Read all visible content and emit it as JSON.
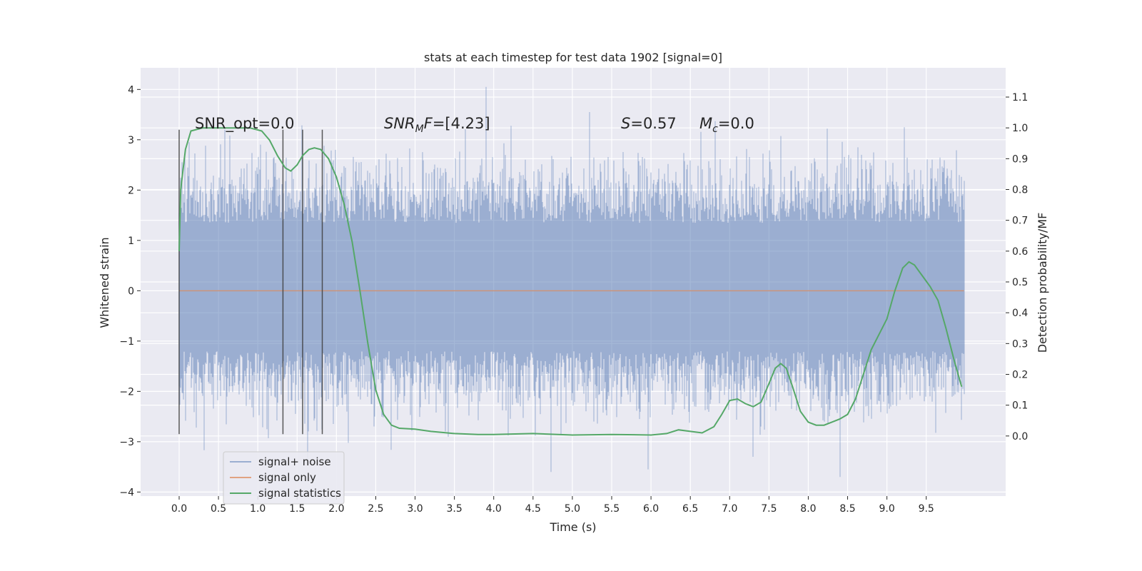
{
  "chart_data": {
    "type": "line",
    "title": "stats at each timestep for test data 1902 [signal=0]",
    "xlabel": "Time (s)",
    "ylabel": "Whitened strain",
    "y2label": "Detection probability/MF",
    "xlim": [
      -0.49,
      10.51
    ],
    "ylim": [
      -4.08,
      4.43
    ],
    "y2lim": [
      -0.195,
      1.195
    ],
    "grid": true,
    "background": "#eaeaf2",
    "xticks": [
      "0.0",
      "0.5",
      "1.0",
      "1.5",
      "2.0",
      "2.5",
      "3.0",
      "3.5",
      "4.0",
      "4.5",
      "5.0",
      "5.5",
      "6.0",
      "6.5",
      "7.0",
      "7.5",
      "8.0",
      "8.5",
      "9.0",
      "9.5"
    ],
    "yticks": [
      "4",
      "3",
      "2",
      "1",
      "0",
      "−1",
      "−2",
      "−3",
      "−4"
    ],
    "y2ticks": [
      "1.1",
      "1.0",
      "0.9",
      "0.8",
      "0.7",
      "0.6",
      "0.5",
      "0.4",
      "0.3",
      "0.2",
      "0.1",
      "0.0"
    ],
    "annotations": {
      "snr_opt": "SNR_opt=0.0",
      "snr_mf_main": "SNR",
      "snr_mf_sub": "M",
      "snr_mf_f": "F",
      "snr_mf_val": "=[4.23]",
      "s_var": "S",
      "s_val": "=0.57",
      "mc_var": "M",
      "mc_sub": "c",
      "mc_val": "=0.0"
    },
    "vertical_markers_x": [
      0.0,
      1.32,
      1.57,
      1.82
    ],
    "vertical_marker_range": [
      -2.85,
      3.2
    ],
    "noise": {
      "t_range": [
        0.0,
        9.98
      ],
      "typical_envelope": [
        -2.0,
        2.3
      ],
      "extremes": [
        {
          "t": 3.9,
          "y": 4.05
        },
        {
          "t": 9.22,
          "y": 3.25
        },
        {
          "t": 0.58,
          "y": 3.2
        },
        {
          "t": 5.22,
          "y": 3.55
        },
        {
          "t": 4.73,
          "y": -3.6
        },
        {
          "t": 8.4,
          "y": -3.7
        },
        {
          "t": 1.63,
          "y": -3.4
        },
        {
          "t": 7.3,
          "y": -3.3
        },
        {
          "t": 5.96,
          "y": -3.55
        }
      ]
    },
    "series": [
      {
        "name": "signal+ noise",
        "color": "#4c72b0",
        "note": "dense whitened strain trace"
      },
      {
        "name": "signal only",
        "color": "#dd8452",
        "x": [
          0.0,
          9.98
        ],
        "values": [
          0.0,
          0.0
        ]
      },
      {
        "name": "signal statistics",
        "color": "#55a868",
        "axis": "right",
        "x": [
          0.0,
          0.02,
          0.08,
          0.15,
          0.3,
          0.6,
          0.9,
          1.05,
          1.15,
          1.25,
          1.35,
          1.42,
          1.5,
          1.57,
          1.65,
          1.72,
          1.8,
          1.9,
          2.0,
          2.1,
          2.2,
          2.3,
          2.4,
          2.5,
          2.6,
          2.7,
          2.8,
          3.0,
          3.2,
          3.5,
          3.8,
          4.0,
          4.5,
          5.0,
          5.5,
          6.0,
          6.2,
          6.35,
          6.5,
          6.65,
          6.8,
          6.9,
          7.0,
          7.1,
          7.2,
          7.3,
          7.4,
          7.5,
          7.58,
          7.65,
          7.72,
          7.8,
          7.9,
          8.0,
          8.1,
          8.2,
          8.3,
          8.4,
          8.5,
          8.6,
          8.7,
          8.8,
          8.9,
          9.0,
          9.1,
          9.2,
          9.28,
          9.35,
          9.45,
          9.55,
          9.65,
          9.75,
          9.85,
          9.95
        ],
        "values": [
          0.6,
          0.8,
          0.93,
          0.99,
          1.0,
          1.0,
          1.0,
          0.99,
          0.96,
          0.91,
          0.87,
          0.86,
          0.88,
          0.91,
          0.93,
          0.935,
          0.93,
          0.9,
          0.84,
          0.75,
          0.63,
          0.47,
          0.3,
          0.15,
          0.07,
          0.035,
          0.025,
          0.022,
          0.015,
          0.008,
          0.005,
          0.005,
          0.008,
          0.003,
          0.005,
          0.003,
          0.008,
          0.02,
          0.015,
          0.01,
          0.03,
          0.07,
          0.115,
          0.12,
          0.105,
          0.095,
          0.11,
          0.17,
          0.22,
          0.235,
          0.22,
          0.16,
          0.08,
          0.045,
          0.035,
          0.035,
          0.045,
          0.055,
          0.07,
          0.12,
          0.2,
          0.28,
          0.33,
          0.38,
          0.47,
          0.545,
          0.565,
          0.555,
          0.52,
          0.485,
          0.44,
          0.35,
          0.25,
          0.16
        ]
      }
    ],
    "legend": {
      "placement": "lower-left"
    }
  }
}
